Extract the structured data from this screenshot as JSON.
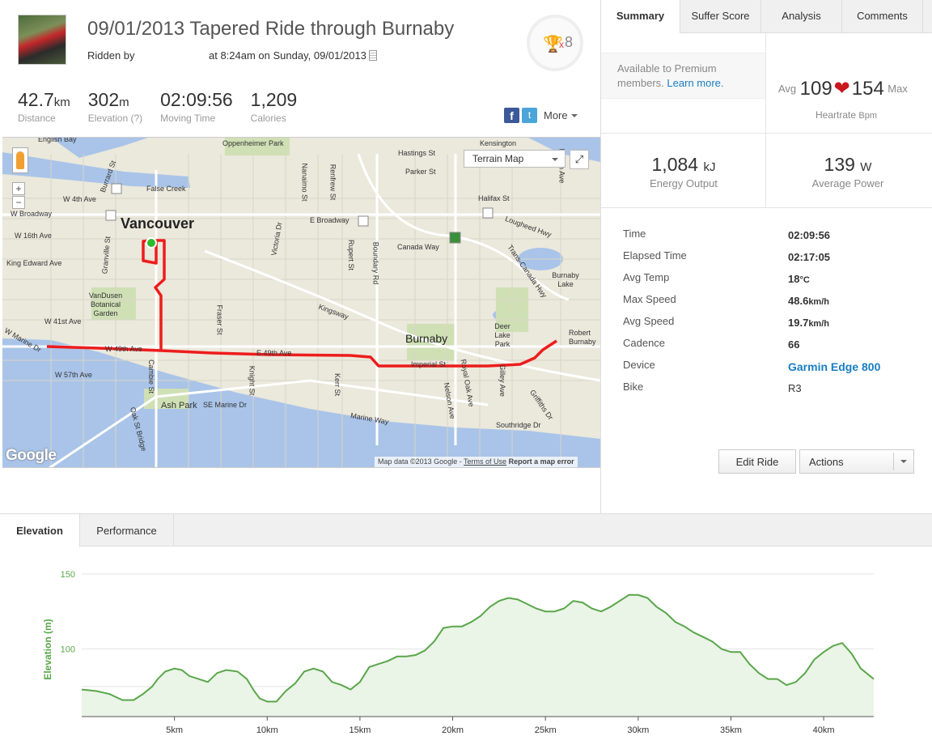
{
  "activity": {
    "title": "09/01/2013 Tapered Ride through Burnaby",
    "ridden_by": "Ridden by",
    "time_text": "at 8:24am on Sunday, 09/01/2013",
    "achievement_count": "8",
    "achievement_x": "x"
  },
  "stats": [
    {
      "value": "42.7",
      "unit": "km",
      "label": "Distance"
    },
    {
      "value": "302",
      "unit": "m",
      "label": "Elevation (?)"
    },
    {
      "value": "02:09:56",
      "unit": "",
      "label": "Moving Time"
    },
    {
      "value": "1,209",
      "unit": "",
      "label": "Calories"
    }
  ],
  "share": {
    "fb": "f",
    "tw": "t",
    "more": "More"
  },
  "map": {
    "terrain_label": "Terrain Map",
    "fullscreen": "⤢",
    "zoom_in": "+",
    "zoom_out": "−",
    "logo": "Google",
    "attribution": "Map data ©2013 Google",
    "terms": "Terms of Use",
    "report": "Report a map error",
    "city_main": "Vancouver",
    "city_burnaby": "Burnaby",
    "labels": [
      "English Bay",
      "Oppenheimer Park",
      "Hastings St",
      "Kensington",
      "Burrard St",
      "False Creek",
      "Parker St",
      "W 4th Ave",
      "Nanaimo St",
      "Renfrew St",
      "Halifax St",
      "W Broadway",
      "E Broadway",
      "Lougheed Hwy",
      "W 16th Ave",
      "Canada Way",
      "Victoria Dr",
      "Rupert St",
      "Boundary Rd",
      "King Edward Ave",
      "Granville St",
      "VanDusen Botanical Garden",
      "Burnaby Lake",
      "Trans-Canada Hwy",
      "Kingsway",
      "Deer Lake Park",
      "W 41st Ave",
      "Robert Burnaby",
      "Fraser St",
      "W Marine Dr",
      "W 49th Ave",
      "E 49th Ave",
      "Imperial St",
      "W 57th Ave",
      "Knight St",
      "Kerr St",
      "Royal Oak Ave",
      "Gilley Ave",
      "Ash Park",
      "SE Marine Dr",
      "Nelson Ave",
      "Marine Way",
      "Southridge Dr",
      "Griffiths Dr",
      "Oak St Bridge",
      "Cambie St",
      "Dublin Ave"
    ]
  },
  "tabs": {
    "summary": "Summary",
    "suffer": "Suffer Score",
    "analysis": "Analysis",
    "comments": "Comments"
  },
  "premium": {
    "text": "Available to Premium members.",
    "link": "Learn more."
  },
  "heartrate": {
    "avg_label": "Avg",
    "avg": "109",
    "max": "154",
    "max_label": "Max",
    "label": "Heartrate",
    "unit": "Bpm",
    "heart_icon": "❤"
  },
  "energy": {
    "value": "1,084",
    "unit": "kJ",
    "label": "Energy Output"
  },
  "power": {
    "value": "139",
    "unit": "W",
    "label": "Average Power"
  },
  "details": [
    {
      "label": "Time",
      "value": "02:09:56",
      "unit": ""
    },
    {
      "label": "Elapsed Time",
      "value": "02:17:05",
      "unit": ""
    },
    {
      "label": "Avg Temp",
      "value": "18",
      "unit": "°C"
    },
    {
      "label": "Max Speed",
      "value": "48.6",
      "unit": "km/h"
    },
    {
      "label": "Avg Speed",
      "value": "19.7",
      "unit": "km/h"
    },
    {
      "label": "Cadence",
      "value": "66",
      "unit": ""
    },
    {
      "label": "Device",
      "value": "Garmin Edge 800",
      "unit": ""
    },
    {
      "label": "Bike",
      "value": "R3",
      "unit": ""
    }
  ],
  "buttons": {
    "edit": "Edit Ride",
    "actions": "Actions"
  },
  "bottom_tabs": {
    "elevation": "Elevation",
    "performance": "Performance"
  },
  "colors": {
    "route": "#ee1c1c",
    "elevation": "#5aa64a",
    "link": "#1a7ec2",
    "heart": "#c8171e"
  },
  "chart_data": {
    "type": "area",
    "title": "",
    "xlabel": "",
    "ylabel": "Elevation (m)",
    "xlim": [
      0,
      42.7
    ],
    "ylim": [
      55,
      158
    ],
    "x_ticks": [
      5,
      10,
      15,
      20,
      25,
      30,
      35,
      40
    ],
    "x_tick_labels": [
      "5km",
      "10km",
      "15km",
      "20km",
      "25km",
      "30km",
      "35km",
      "40km"
    ],
    "y_ticks": [
      100,
      150
    ],
    "y_tick_labels": [
      "100",
      "150"
    ],
    "series": [
      {
        "name": "Elevation",
        "x": [
          0,
          0.8,
          1.5,
          2.2,
          2.8,
          3.3,
          3.8,
          4.1,
          4.5,
          5,
          5.4,
          5.8,
          6.3,
          6.8,
          7.3,
          7.8,
          8.4,
          8.9,
          9.3,
          9.6,
          10,
          10.5,
          11,
          11.5,
          12,
          12.5,
          13,
          13.5,
          14,
          14.5,
          15,
          15.5,
          16,
          16.5,
          17,
          17.5,
          18,
          18.5,
          19,
          19.5,
          20,
          20.5,
          21,
          21.5,
          22,
          22.5,
          23,
          23.5,
          24,
          24.5,
          25,
          25.5,
          26,
          26.5,
          27,
          27.5,
          28,
          28.5,
          29,
          29.5,
          30,
          30.5,
          31,
          31.5,
          32,
          32.5,
          33,
          33.5,
          34,
          34.5,
          35,
          35.5,
          36,
          36.5,
          37,
          37.5,
          38,
          38.5,
          39,
          39.5,
          40,
          40.5,
          41,
          41.5,
          42,
          42.7
        ],
        "values": [
          73,
          72,
          70,
          66,
          66,
          70,
          75,
          80,
          85,
          87,
          86,
          82,
          80,
          78,
          84,
          86,
          85,
          80,
          72,
          67,
          65,
          65,
          72,
          77,
          85,
          87,
          85,
          78,
          76,
          73,
          78,
          88,
          90,
          92,
          95,
          95,
          96,
          99,
          105,
          114,
          115,
          115,
          118,
          122,
          128,
          132,
          134,
          133,
          130,
          127,
          125,
          125,
          127,
          132,
          131,
          127,
          125,
          128,
          132,
          136,
          136,
          134,
          128,
          124,
          118,
          115,
          111,
          108,
          105,
          100,
          98,
          98,
          90,
          84,
          80,
          80,
          76,
          78,
          84,
          93,
          98,
          102,
          104,
          97,
          87,
          80
        ]
      }
    ]
  }
}
